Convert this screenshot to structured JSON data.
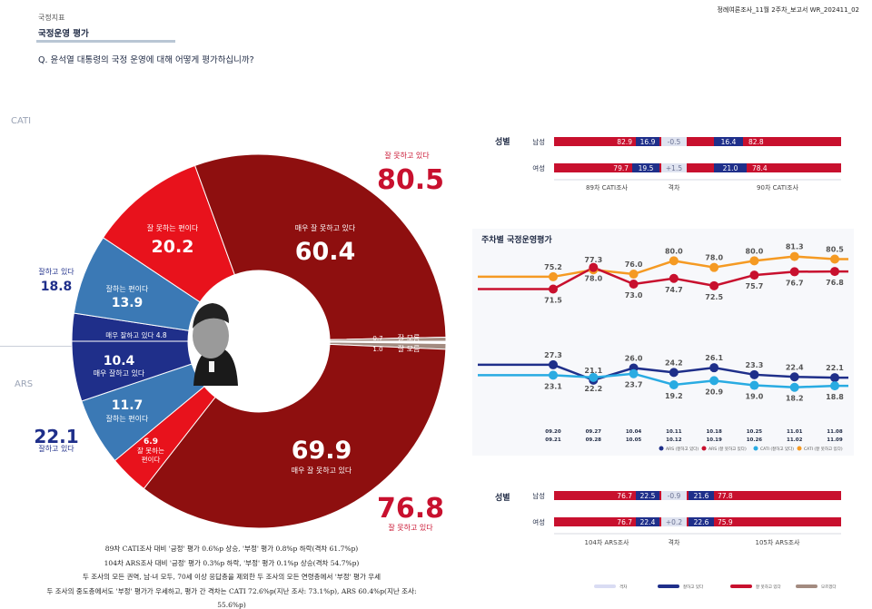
{
  "header": {
    "doc_id": "정례여론조사_11월 2주차_보고서   WR_202411_02",
    "category": "국정지표",
    "title": "국정운영 평가",
    "question": "Q. 윤석열 대통령의 국정 운영에 대해 어떻게 평가하십니까?"
  },
  "section_labels": {
    "cati": "CATI",
    "ars": "ARS"
  },
  "donut": {
    "cati_slices": [
      {
        "label": "매우 잘 못하고 있다",
        "value": 60.4,
        "color": "#8e0f0f"
      },
      {
        "label": "잘 못하는 편이다",
        "value": 20.2,
        "color": "#e8121c"
      },
      {
        "label": "잘하는 편이다",
        "value": 13.9,
        "color": "#3b79b5"
      },
      {
        "label": "매우 잘하고 있다 4.8",
        "value": 4.8,
        "color": "#1f2f8a"
      },
      {
        "label": "잘 모름",
        "value": 0.7,
        "color": "#a38b80"
      }
    ],
    "ars_slices": [
      {
        "label": "매우 잘 못하고 있다",
        "value": 69.9,
        "color": "#8e0f0f"
      },
      {
        "label": "잘 못하는 편이다",
        "value": 6.9,
        "color": "#e8121c"
      },
      {
        "label": "잘하는 편이다",
        "value": 11.7,
        "color": "#3b79b5"
      },
      {
        "label": "매우 잘하고 있다",
        "value": 10.4,
        "color": "#1f2f8a"
      },
      {
        "label": "잘 모름",
        "value": 1.0,
        "color": "#a38b80"
      }
    ],
    "labels": {
      "cati_neg_total": "80.5",
      "cati_neg_total_label": "잘 못하고 있다",
      "cati_pos_total": "18.8",
      "cati_pos_total_label": "잘하고 있다",
      "cati_vbad_label": "매우 잘 못하고 있다",
      "cati_vbad_value": "60.4",
      "cati_bad_label": "잘 못하는 편이다",
      "cati_bad_value": "20.2",
      "cati_good_label": "잘하는 편이다",
      "cati_good_value": "13.9",
      "cati_vgood_label": "매우 잘하고 있다 4.8",
      "cati_dk_value": "0.7",
      "cati_dk_label": "잘 모름",
      "ars_dk_value": "1.0",
      "ars_dk_label": "잘 모름",
      "ars_vgood_value": "10.4",
      "ars_vgood_label": "매우 잘하고 있다",
      "ars_good_value": "11.7",
      "ars_good_label": "잘하는 편이다",
      "ars_bad_value": "6.9",
      "ars_bad_label1": "잘 못하는",
      "ars_bad_label2": "편이다",
      "ars_vbad_value": "69.9",
      "ars_vbad_label": "매우 잘 못하고 있다",
      "ars_pos_total": "22.1",
      "ars_pos_total_label": "잘하고 있다",
      "ars_neg_total": "76.8",
      "ars_neg_total_label": "잘 못하고 있다"
    }
  },
  "gender_cati": {
    "title": "성별",
    "rows": [
      {
        "name": "남성",
        "prev_neg": "82.9",
        "prev_pos": "16.9",
        "diff": "-0.5",
        "cur_pos": "16.4",
        "cur_neg": "82.8"
      },
      {
        "name": "여성",
        "prev_neg": "79.7",
        "prev_pos": "19.5",
        "diff": "+1.5",
        "cur_pos": "21.0",
        "cur_neg": "78.4"
      }
    ],
    "footer": {
      "prev": "89차 CATI조사",
      "diff": "격차",
      "cur": "90차 CATI조사"
    }
  },
  "gender_ars": {
    "title": "성별",
    "rows": [
      {
        "name": "남성",
        "prev_neg": "76.7",
        "prev_pos": "22.5",
        "diff": "-0.9",
        "cur_pos": "21.6",
        "cur_neg": "77.8"
      },
      {
        "name": "여성",
        "prev_neg": "76.7",
        "prev_pos": "22.4",
        "diff": "+0.2",
        "cur_pos": "22.6",
        "cur_neg": "75.9"
      }
    ],
    "footer": {
      "prev": "104차 ARS조사",
      "diff": "격차",
      "cur": "105차 ARS조사"
    }
  },
  "weekly": {
    "title": "주차별 국정운영평가",
    "x_top": [
      "09.20",
      "09.27",
      "10.04",
      "10.11",
      "10.18",
      "10.25",
      "11.01",
      "11.08"
    ],
    "x_bottom": [
      "09.21",
      "09.28",
      "10.05",
      "10.12",
      "10.19",
      "10.26",
      "11.02",
      "11.09"
    ],
    "legend": [
      "ARS (잘하고 있다)",
      "ARS (잘 못하고 있다)",
      "CATI (잘하고 있다)",
      "CATI (잘 못하고 있다)"
    ]
  },
  "chart_data": {
    "type": "line",
    "title": "주차별 국정운영평가",
    "x": [
      "09.20-09.21",
      "09.27-09.28",
      "10.04-10.05",
      "10.11-10.12",
      "10.18-10.19",
      "10.25-10.26",
      "11.01-11.02",
      "11.08-11.09"
    ],
    "series": [
      {
        "name": "CATI (잘 못하고 있다)",
        "color": "#f59a23",
        "values": [
          75.2,
          77.3,
          76.0,
          80.0,
          78.0,
          80.0,
          81.3,
          80.5
        ]
      },
      {
        "name": "ARS (잘 못하고 있다)",
        "color": "#c8102e",
        "values": [
          71.5,
          78.0,
          73.0,
          74.7,
          72.5,
          75.7,
          76.7,
          76.8
        ]
      },
      {
        "name": "ARS (잘하고 있다)",
        "color": "#1f2f8a",
        "values": [
          27.3,
          21.1,
          26.0,
          24.2,
          26.1,
          23.3,
          22.4,
          22.1
        ]
      },
      {
        "name": "CATI (잘하고 있다)",
        "color": "#29abe2",
        "values": [
          23.1,
          22.2,
          23.7,
          19.2,
          20.9,
          19.0,
          18.2,
          18.8
        ]
      }
    ]
  },
  "notes": [
    "89차 CATI조사 대비 '긍정' 평가 0.6%p 상승, '부정' 평가 0.8%p 하락(격차 61.7%p)",
    "104차 ARS조사 대비 '긍정' 평가 0.3%p 하락, '부정' 평가 0.1%p 상승(격차 54.7%p)",
    "두 조사의 모든 권역, 남·녀 모두, 70세 이상 응답층을 제외한 두 조사의 모든 연령층에서 '부정' 평가 우세",
    "두 조사의 중도층에서도 '부정' 평가가 우세하고, 평가 간 격차는 CATI 72.6%p(지난 조사: 73.1%p), ARS 60.4%p(지난 조사: 55.6%p)"
  ],
  "bottom_legend": [
    "격차",
    "잘하고 있다",
    "잘 못하고 있다",
    "모르겠다"
  ]
}
